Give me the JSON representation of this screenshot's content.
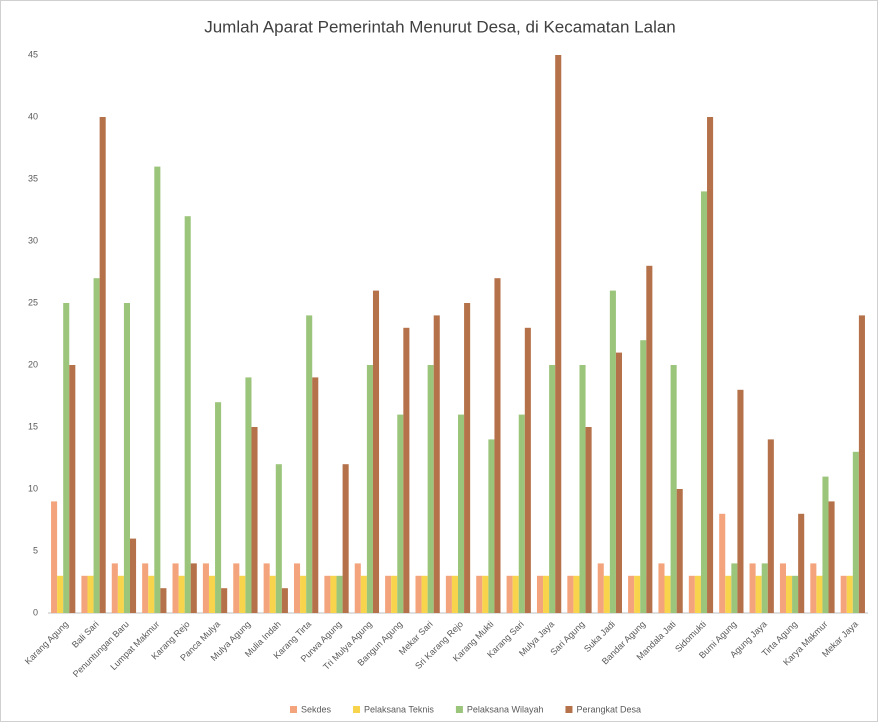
{
  "chart_data": {
    "type": "bar",
    "title": "Jumlah Aparat Pemerintah Menurut Desa, di Kecamatan Lalan",
    "categories": [
      "Karang Agung",
      "Bali Sari",
      "Penuntungan Baru",
      "Lumpat Makmur",
      "Karang Rejo",
      "Panca Mulya",
      "Mulya Agung",
      "Mulia Indah",
      "Karang Tirta",
      "Purwa Agung",
      "Tri Mulya Agung",
      "Bangun Agung",
      "Mekar Sari",
      "Sri Karang Rejo",
      "Karang Mukti",
      "Karang Sari",
      "Mulya Jaya",
      "Sari Agung",
      "Suka Jadi",
      "Bandar Agung",
      "Mandala Jati",
      "Sidomukti",
      "Bumi Agung",
      "Agung Jaya",
      "Tirta Agung",
      "Karya Makmur",
      "Mekar Jaya"
    ],
    "series": [
      {
        "name": "Sekdes",
        "color": "#f4a47c",
        "values": [
          9,
          3,
          4,
          4,
          4,
          4,
          4,
          4,
          4,
          3,
          4,
          3,
          3,
          3,
          3,
          3,
          3,
          3,
          4,
          3,
          4,
          3,
          8,
          4,
          4,
          4,
          3
        ]
      },
      {
        "name": "Pelaksana Teknis",
        "color": "#f7d44c",
        "values": [
          3,
          3,
          3,
          3,
          3,
          3,
          3,
          3,
          3,
          3,
          3,
          3,
          3,
          3,
          3,
          3,
          3,
          3,
          3,
          3,
          3,
          3,
          3,
          3,
          3,
          3,
          3
        ]
      },
      {
        "name": "Pelaksana Wilayah",
        "color": "#9cc57c",
        "values": [
          25,
          27,
          25,
          36,
          32,
          17,
          19,
          12,
          24,
          3,
          20,
          16,
          20,
          16,
          14,
          16,
          20,
          20,
          26,
          22,
          20,
          34,
          4,
          4,
          3,
          11,
          13
        ]
      },
      {
        "name": "Perangkat Desa",
        "color": "#b5724a",
        "values": [
          20,
          40,
          6,
          2,
          4,
          2,
          15,
          2,
          19,
          12,
          26,
          23,
          24,
          25,
          27,
          23,
          45,
          15,
          21,
          28,
          10,
          40,
          18,
          14,
          8,
          9,
          24
        ]
      }
    ],
    "ylim": [
      0,
      45
    ],
    "yticks": [
      0,
      5,
      10,
      15,
      20,
      25,
      30,
      35,
      40,
      45
    ],
    "grid": false,
    "legend": "bottom"
  }
}
